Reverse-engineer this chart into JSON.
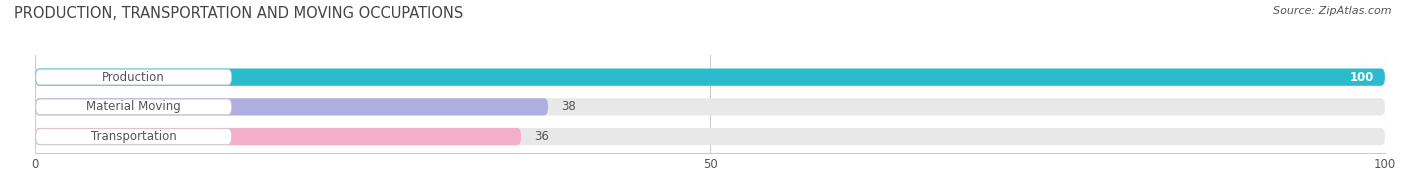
{
  "title": "PRODUCTION, TRANSPORTATION AND MOVING OCCUPATIONS",
  "source": "Source: ZipAtlas.com",
  "categories": [
    "Production",
    "Material Moving",
    "Transportation"
  ],
  "values": [
    100,
    38,
    36
  ],
  "bar_colors": [
    "#2abccc",
    "#b0aee0",
    "#f4afc8"
  ],
  "bar_background": "#e8e8e8",
  "xlim": [
    0,
    100
  ],
  "xticks": [
    0,
    50,
    100
  ],
  "figsize": [
    14.06,
    1.96
  ],
  "dpi": 100,
  "title_fontsize": 10.5,
  "label_fontsize": 8.5,
  "value_fontsize": 8.5,
  "bar_height": 0.58,
  "background_color": "#ffffff",
  "label_bg": "#ffffff"
}
